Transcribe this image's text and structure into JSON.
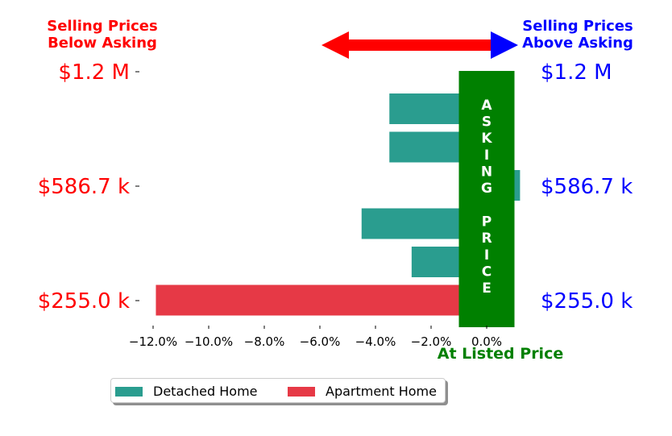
{
  "chart_data": {
    "type": "bar",
    "orientation": "horizontal",
    "series": [
      {
        "name": "Detached Home",
        "color": "#2a9d8f"
      },
      {
        "name": "Apartment Home",
        "color": "#e63946"
      }
    ],
    "bars": [
      {
        "series": "Detached Home",
        "value": -3.5
      },
      {
        "series": "Detached Home",
        "value": -3.5
      },
      {
        "series": "Detached Home",
        "value": 1.2
      },
      {
        "series": "Detached Home",
        "value": -4.5
      },
      {
        "series": "Detached Home",
        "value": -2.7
      },
      {
        "series": "Apartment Home",
        "value": -11.9
      }
    ],
    "xlim": [
      -12.5,
      1.3
    ],
    "x_ticks": [
      -12.0,
      -10.0,
      -8.0,
      -6.0,
      -4.0,
      -2.0,
      0.0
    ],
    "x_tick_labels": [
      "−12.0%",
      "−10.0%",
      "−8.0%",
      "−6.0%",
      "−4.0%",
      "−2.0%",
      "0.0%"
    ],
    "y_tick_labels": [
      "$1.2 M",
      "$586.7 k",
      "$255.0 k"
    ],
    "left_title": [
      "Selling Prices",
      "Below Asking"
    ],
    "right_title": [
      "Selling Prices",
      "Above Asking"
    ],
    "asking_price_label": "ASKING  PRICE",
    "at_listed_price_label": "At Listed Price",
    "asking_band": [
      -1.0,
      1.0
    ],
    "legend_placement": "bottom-center",
    "colors": {
      "below": "#ff0000",
      "above": "#0000ff",
      "asking": "#008000",
      "arrow_left": "#ff0000",
      "arrow_right": "#0000ff"
    }
  }
}
